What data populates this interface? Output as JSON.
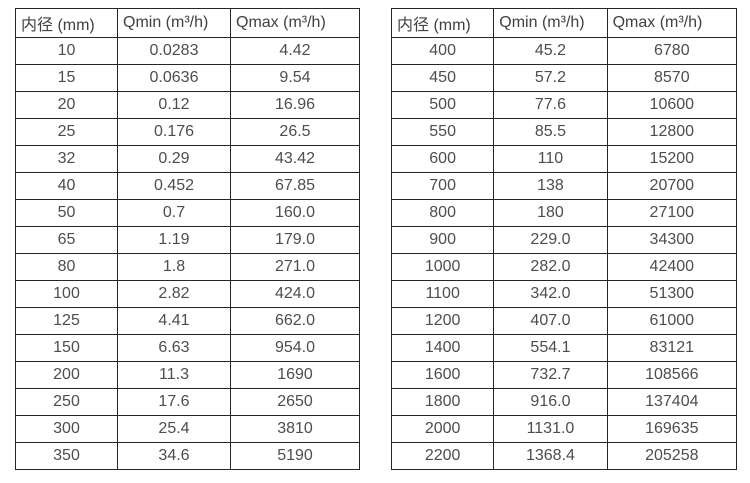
{
  "page": {
    "background": "#ffffff"
  },
  "colors": {
    "text": "#4d4d4d",
    "header_text": "#404040",
    "border": "#262626",
    "background": "#ffffff"
  },
  "tables": [
    {
      "name": "small-diameters",
      "headers": [
        "内径 (mm)",
        "Qmin (m³/h)",
        "Qmax (m³/h)"
      ],
      "rows": [
        [
          "10",
          "0.0283",
          "4.42"
        ],
        [
          "15",
          "0.0636",
          "9.54"
        ],
        [
          "20",
          "0.12",
          "16.96"
        ],
        [
          "25",
          "0.176",
          "26.5"
        ],
        [
          "32",
          "0.29",
          "43.42"
        ],
        [
          "40",
          "0.452",
          "67.85"
        ],
        [
          "50",
          "0.7",
          "160.0"
        ],
        [
          "65",
          "1.19",
          "179.0"
        ],
        [
          "80",
          "1.8",
          "271.0"
        ],
        [
          "100",
          "2.82",
          "424.0"
        ],
        [
          "125",
          "4.41",
          "662.0"
        ],
        [
          "150",
          "6.63",
          "954.0"
        ],
        [
          "200",
          "11.3",
          "1690"
        ],
        [
          "250",
          "17.6",
          "2650"
        ],
        [
          "300",
          "25.4",
          "3810"
        ],
        [
          "350",
          "34.6",
          "5190"
        ]
      ]
    },
    {
      "name": "large-diameters",
      "headers": [
        "内径 (mm)",
        "Qmin (m³/h)",
        "Qmax (m³/h)"
      ],
      "rows": [
        [
          "400",
          "45.2",
          "6780"
        ],
        [
          "450",
          "57.2",
          "8570"
        ],
        [
          "500",
          "77.6",
          "10600"
        ],
        [
          "550",
          "85.5",
          "12800"
        ],
        [
          "600",
          "110",
          "15200"
        ],
        [
          "700",
          "138",
          "20700"
        ],
        [
          "800",
          "180",
          "27100"
        ],
        [
          "900",
          "229.0",
          "34300"
        ],
        [
          "1000",
          "282.0",
          "42400"
        ],
        [
          "1100",
          "342.0",
          "51300"
        ],
        [
          "1200",
          "407.0",
          "61000"
        ],
        [
          "1400",
          "554.1",
          "83121"
        ],
        [
          "1600",
          "732.7",
          "108566"
        ],
        [
          "1800",
          "916.0",
          "137404"
        ],
        [
          "2000",
          "1131.0",
          "169635"
        ],
        [
          "2200",
          "1368.4",
          "205258"
        ]
      ]
    }
  ]
}
